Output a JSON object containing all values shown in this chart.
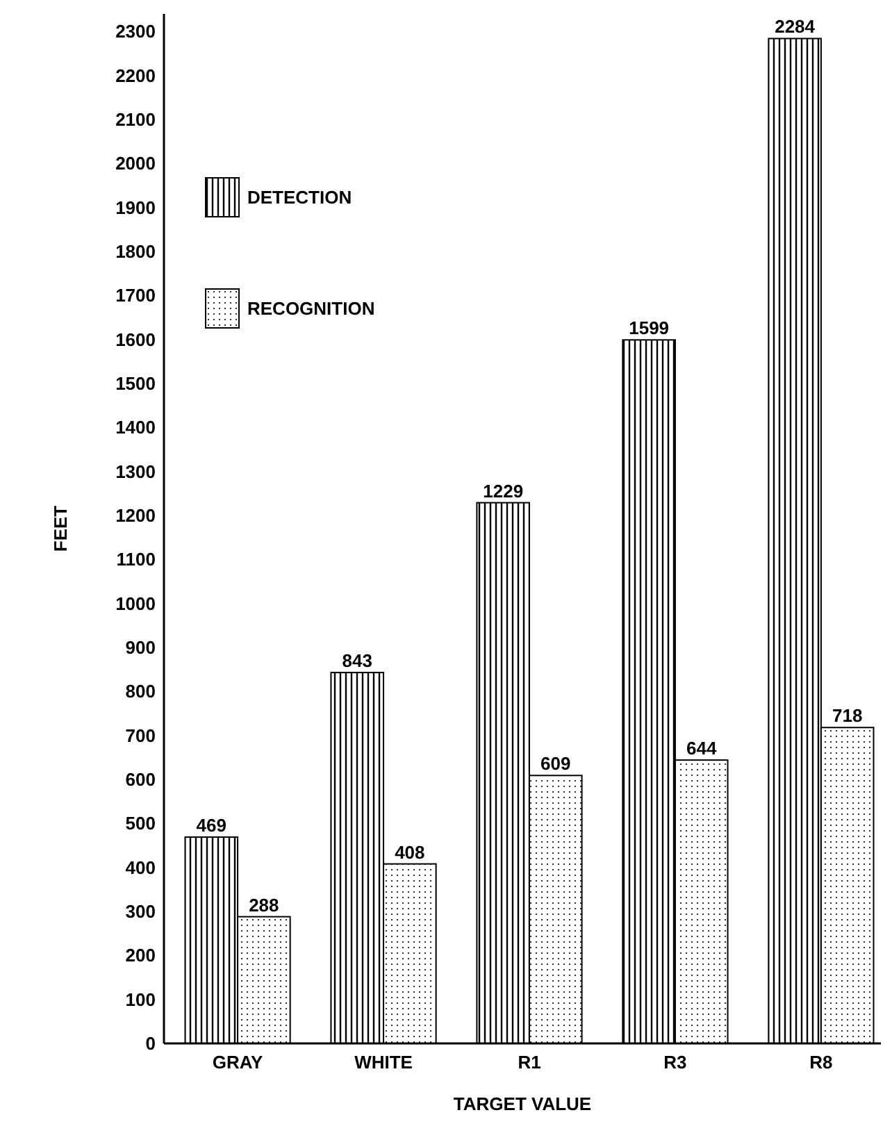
{
  "chart_data": {
    "type": "bar",
    "xlabel": "TARGET VALUE",
    "ylabel": "FEET",
    "categories": [
      "GRAY",
      "WHITE",
      "R1",
      "R3",
      "R8"
    ],
    "series": [
      {
        "name": "DETECTION",
        "color": "#000000",
        "values": [
          469,
          843,
          1229,
          1599,
          2284
        ]
      },
      {
        "name": "RECOGNITION",
        "color": "#000000",
        "values": [
          288,
          408,
          609,
          644,
          718
        ]
      }
    ],
    "ylim": [
      0,
      2340
    ],
    "yticks": [
      0,
      100,
      200,
      300,
      400,
      500,
      600,
      700,
      800,
      900,
      1000,
      1100,
      1200,
      1300,
      1400,
      1500,
      1600,
      1700,
      1800,
      1900,
      2000,
      2100,
      2200,
      2300
    ],
    "data_labels": true,
    "legend": "top left",
    "grid": false
  }
}
